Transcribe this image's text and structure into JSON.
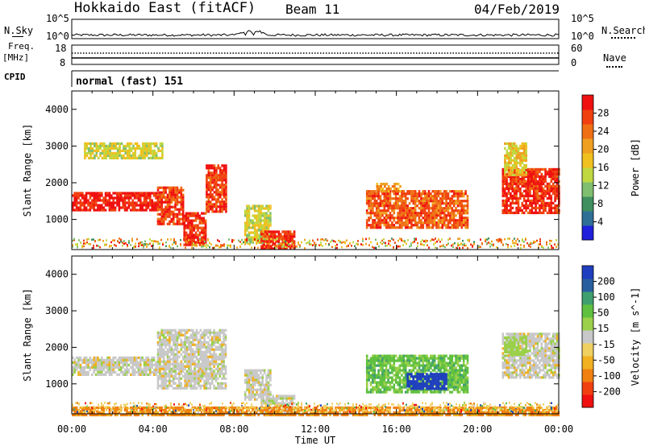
{
  "header": {
    "station": "Hokkaido East (fitACF)",
    "beam": "Beam 11",
    "date": "04/Feb/2019"
  },
  "top_panels": {
    "nsky_label": "N.Sky",
    "nsearch_label": "N.Search",
    "nsky_ticks": [
      "10^5",
      "10^0"
    ],
    "nsearch_ticks": [
      "10^5",
      "10^0"
    ],
    "freq_label_1": "Freq.",
    "freq_label_2": "[MHz]",
    "freq_ticks": [
      "18",
      "8"
    ],
    "nave_label": "Nave",
    "nave_ticks": [
      "60",
      "0"
    ],
    "cpid_label": "CPID",
    "cpid_value": "normal (fast) 151"
  },
  "colors": {
    "power": [
      "#1f1fdc",
      "#2f6f96",
      "#3f8f5f",
      "#7fbf6f",
      "#c0d840",
      "#f0c020",
      "#f0a020",
      "#ef7014",
      "#f04010",
      "#f01010"
    ],
    "velocity": [
      "#f01010",
      "#f04010",
      "#f08010",
      "#f0b020",
      "#f0d060",
      "#c8c8c8",
      "#9ad04a",
      "#5fc03f",
      "#3f9f6f",
      "#2a5f9f",
      "#1f3fbf"
    ]
  },
  "chart_data": [
    {
      "type": "heatmap",
      "title": "Power",
      "ylabel": "Slant Range [km]",
      "colorbar_label": "Power [dB]",
      "colorbar_ticks": [
        "28",
        "24",
        "20",
        "16",
        "12",
        "8",
        "4"
      ],
      "ylim": [
        180,
        4500
      ],
      "y_ticks": [
        "4000",
        "3000",
        "2000",
        "1000"
      ],
      "xlim": [
        "00:00",
        "24:00"
      ],
      "x_ticks": [
        "00:00",
        "04:00",
        "08:00",
        "12:00",
        "16:00",
        "20:00",
        "00:00"
      ],
      "xlabel": "",
      "regions": [
        {
          "t": [
            0.0,
            4.2
          ],
          "r": [
            1250,
            1750
          ],
          "value": 28
        },
        {
          "t": [
            4.2,
            5.5
          ],
          "r": [
            900,
            1900
          ],
          "value": 26
        },
        {
          "t": [
            5.5,
            6.6
          ],
          "r": [
            300,
            1200
          ],
          "value": 27
        },
        {
          "t": [
            6.6,
            7.6
          ],
          "r": [
            1200,
            2500
          ],
          "value": 26
        },
        {
          "t": [
            0.6,
            4.5
          ],
          "r": [
            2700,
            3100
          ],
          "value": 14
        },
        {
          "t": [
            8.5,
            9.8
          ],
          "r": [
            400,
            1400
          ],
          "value": 14
        },
        {
          "t": [
            9.3,
            11.0
          ],
          "r": [
            200,
            700
          ],
          "value": 27
        },
        {
          "t": [
            14.5,
            19.5
          ],
          "r": [
            800,
            1800
          ],
          "value": 24
        },
        {
          "t": [
            15.0,
            16.2
          ],
          "r": [
            1800,
            2000
          ],
          "value": 20
        },
        {
          "t": [
            21.2,
            24.0
          ],
          "r": [
            1200,
            2400
          ],
          "value": 27
        },
        {
          "t": [
            21.3,
            22.4
          ],
          "r": [
            2200,
            3100
          ],
          "value": 16
        }
      ]
    },
    {
      "type": "heatmap",
      "title": "Velocity",
      "ylabel": "Slant Range [km]",
      "colorbar_label": "Velocity [m s^-1]",
      "colorbar_ticks": [
        "200",
        "100",
        "50",
        "15",
        "-15",
        "-50",
        "-100",
        "-200"
      ],
      "ylim": [
        180,
        4500
      ],
      "y_ticks": [
        "4000",
        "3000",
        "2000",
        "1000"
      ],
      "xlim": [
        "00:00",
        "24:00"
      ],
      "x_ticks": [
        "00:00",
        "04:00",
        "08:00",
        "12:00",
        "16:00",
        "20:00",
        "00:00"
      ],
      "xlabel": "Time UT",
      "regions": [
        {
          "t": [
            0.0,
            4.2
          ],
          "r": [
            1250,
            1750
          ],
          "value": 0
        },
        {
          "t": [
            4.2,
            7.6
          ],
          "r": [
            900,
            2500
          ],
          "value": 0
        },
        {
          "t": [
            8.5,
            9.8
          ],
          "r": [
            600,
            1400
          ],
          "value": 0
        },
        {
          "t": [
            9.3,
            11.0
          ],
          "r": [
            200,
            700
          ],
          "value": 0
        },
        {
          "t": [
            0.0,
            24.0
          ],
          "r": [
            180,
            380
          ],
          "value": -40
        },
        {
          "t": [
            14.5,
            19.5
          ],
          "r": [
            800,
            1800
          ],
          "value": 60
        },
        {
          "t": [
            16.5,
            18.5
          ],
          "r": [
            900,
            1300
          ],
          "value": 150
        },
        {
          "t": [
            21.2,
            24.0
          ],
          "r": [
            1200,
            2400
          ],
          "value": 0
        },
        {
          "t": [
            21.3,
            22.4
          ],
          "r": [
            1800,
            2300
          ],
          "value": 30
        }
      ]
    }
  ]
}
